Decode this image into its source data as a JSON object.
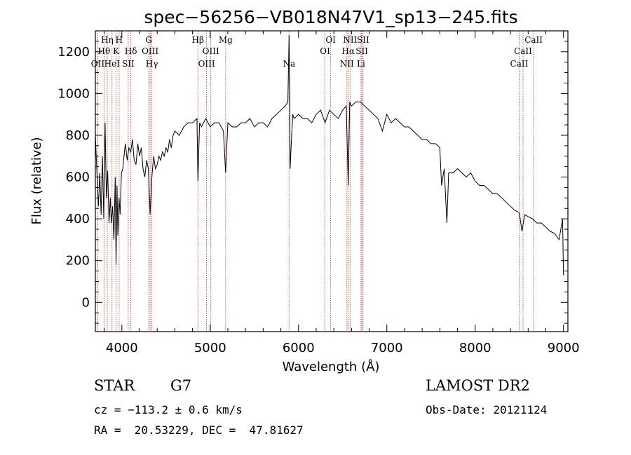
{
  "chart_data": {
    "type": "line",
    "title": "spec−56256−VB018N47V1_sp13−245.fits",
    "xlabel": "Wavelength (Å)",
    "ylabel": "Flux (relative)",
    "xlim": [
      3700,
      9050
    ],
    "ylim": [
      -140,
      1300
    ],
    "xticks": [
      4000,
      5000,
      6000,
      7000,
      8000,
      9000
    ],
    "yticks": [
      0,
      200,
      400,
      600,
      800,
      1000,
      1200
    ],
    "spectral_lines": [
      {
        "label": "OII",
        "wavelength": 3727,
        "row": 3
      },
      {
        "label": "Hθ",
        "wavelength": 3798,
        "row": 2
      },
      {
        "label": "Hη",
        "wavelength": 3835,
        "row": 1
      },
      {
        "label": "HeI",
        "wavelength": 3889,
        "row": 3
      },
      {
        "label": "K",
        "wavelength": 3934,
        "row": 2
      },
      {
        "label": "H",
        "wavelength": 3969,
        "row": 1
      },
      {
        "label": "SII",
        "wavelength": 4072,
        "row": 3
      },
      {
        "label": "Hδ",
        "wavelength": 4102,
        "row": 2
      },
      {
        "label": "G",
        "wavelength": 4304,
        "row": 1
      },
      {
        "label": "OIII",
        "wavelength": 4320,
        "row": 2
      },
      {
        "label": "Hγ",
        "wavelength": 4340,
        "row": 3
      },
      {
        "label": "Hβ",
        "wavelength": 4861,
        "row": 1
      },
      {
        "label": "OIII",
        "wavelength": 4959,
        "row": 3
      },
      {
        "label": "OIII",
        "wavelength": 5007,
        "row": 2
      },
      {
        "label": "Mg",
        "wavelength": 5175,
        "row": 1
      },
      {
        "label": "Na",
        "wavelength": 5893,
        "row": 3
      },
      {
        "label": "OI",
        "wavelength": 6300,
        "row": 2
      },
      {
        "label": "OI",
        "wavelength": 6364,
        "row": 1
      },
      {
        "label": "NII",
        "wavelength": 6548,
        "row": 3
      },
      {
        "label": "Hα",
        "wavelength": 6563,
        "row": 2
      },
      {
        "label": "NII",
        "wavelength": 6584,
        "row": 1
      },
      {
        "label": "Li",
        "wavelength": 6708,
        "row": 3
      },
      {
        "label": "SII",
        "wavelength": 6717,
        "row": 2
      },
      {
        "label": "SII",
        "wavelength": 6731,
        "row": 1
      },
      {
        "label": "CaII",
        "wavelength": 8498,
        "row": 3
      },
      {
        "label": "CaII",
        "wavelength": 8542,
        "row": 2
      },
      {
        "label": "CaII",
        "wavelength": 8662,
        "row": 1
      }
    ],
    "series": [
      {
        "x": [
          3700,
          3720,
          3735,
          3750,
          3765,
          3780,
          3795,
          3810,
          3825,
          3840,
          3855,
          3870,
          3880,
          3895,
          3910,
          3925,
          3934,
          3945,
          3955,
          3969,
          3980,
          3995,
          4010,
          4025,
          4040,
          4060,
          4080,
          4100,
          4120,
          4140,
          4160,
          4180,
          4200,
          4220,
          4240,
          4260,
          4280,
          4300,
          4320,
          4340,
          4360,
          4380,
          4400,
          4420,
          4440,
          4460,
          4480,
          4500,
          4520,
          4540,
          4560,
          4580,
          4600,
          4650,
          4700,
          4750,
          4800,
          4850,
          4861,
          4880,
          4900,
          4950,
          5000,
          5050,
          5100,
          5150,
          5175,
          5200,
          5250,
          5300,
          5350,
          5400,
          5450,
          5500,
          5550,
          5600,
          5650,
          5700,
          5750,
          5800,
          5850,
          5880,
          5893,
          5900,
          5905,
          5920,
          5935,
          5950,
          6000,
          6050,
          6100,
          6150,
          6200,
          6250,
          6300,
          6350,
          6400,
          6450,
          6500,
          6540,
          6563,
          6580,
          6600,
          6650,
          6700,
          6750,
          6800,
          6850,
          6900,
          6950,
          7000,
          7050,
          7100,
          7150,
          7200,
          7250,
          7300,
          7350,
          7400,
          7450,
          7500,
          7550,
          7600,
          7620,
          7650,
          7680,
          7700,
          7750,
          7800,
          7850,
          7900,
          7950,
          8000,
          8050,
          8100,
          8150,
          8200,
          8250,
          8300,
          8350,
          8400,
          8450,
          8500,
          8530,
          8560,
          8600,
          8650,
          8700,
          8750,
          8800,
          8850,
          8900,
          8950,
          8990,
          9000
        ],
        "y": [
          800,
          600,
          460,
          620,
          420,
          700,
          400,
          860,
          500,
          630,
          380,
          500,
          380,
          460,
          300,
          600,
          180,
          560,
          320,
          500,
          420,
          620,
          640,
          700,
          760,
          680,
          740,
          720,
          780,
          680,
          660,
          760,
          700,
          740,
          640,
          600,
          680,
          640,
          420,
          600,
          700,
          640,
          660,
          700,
          680,
          720,
          700,
          740,
          720,
          780,
          740,
          800,
          820,
          800,
          840,
          860,
          860,
          880,
          580,
          860,
          840,
          880,
          840,
          860,
          860,
          820,
          620,
          860,
          840,
          840,
          860,
          860,
          880,
          840,
          860,
          860,
          840,
          880,
          900,
          920,
          940,
          960,
          1280,
          980,
          640,
          780,
          900,
          880,
          900,
          880,
          880,
          860,
          900,
          920,
          860,
          920,
          900,
          880,
          920,
          940,
          560,
          960,
          940,
          960,
          960,
          940,
          920,
          900,
          880,
          820,
          900,
          860,
          880,
          860,
          840,
          840,
          820,
          800,
          780,
          780,
          760,
          760,
          740,
          560,
          640,
          380,
          620,
          620,
          640,
          620,
          600,
          620,
          580,
          560,
          560,
          540,
          520,
          520,
          500,
          480,
          460,
          440,
          430,
          340,
          420,
          410,
          400,
          380,
          380,
          360,
          340,
          330,
          300,
          400,
          130
        ]
      }
    ]
  },
  "info": {
    "object_class": "STAR",
    "subclass": "G7",
    "survey": "LAMOST DR2",
    "redshift": "cz = −113.2 ± 0.6 km/s",
    "obs_date": "Obs-Date: 20121124",
    "coords": "RA =  20.53229, DEC =  47.81627"
  },
  "colors": {
    "spectrum": "#000000",
    "line_markers": "#c0392b",
    "axes": "#000000"
  }
}
